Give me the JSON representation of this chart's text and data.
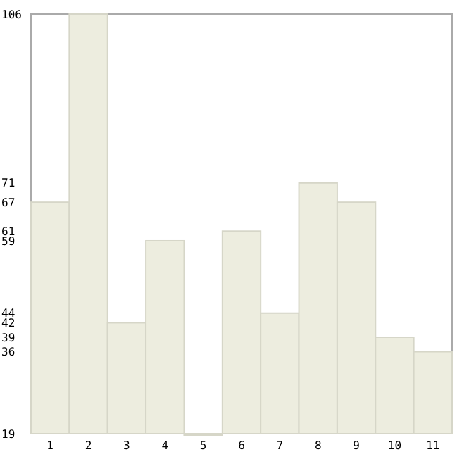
{
  "chart_data": {
    "type": "bar",
    "categories": [
      "1",
      "2",
      "3",
      "4",
      "5",
      "6",
      "7",
      "8",
      "9",
      "10",
      "11"
    ],
    "values": [
      67,
      106,
      42,
      59,
      19,
      61,
      44,
      71,
      67,
      39,
      36
    ],
    "color": "#ededdf",
    "ylim": [
      19,
      106
    ],
    "yticks": [
      19,
      36,
      39,
      42,
      44,
      59,
      61,
      67,
      71,
      106
    ],
    "grid": false
  }
}
